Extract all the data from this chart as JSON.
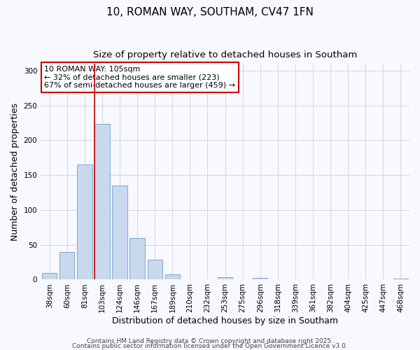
{
  "title": "10, ROMAN WAY, SOUTHAM, CV47 1FN",
  "subtitle": "Size of property relative to detached houses in Southam",
  "xlabel": "Distribution of detached houses by size in Southam",
  "ylabel": "Number of detached properties",
  "bar_color": "#c8d8ed",
  "bar_edge_color": "#7fa8cc",
  "background_color": "#f8f8ff",
  "grid_color": "#d0d0d8",
  "categories": [
    "38sqm",
    "60sqm",
    "81sqm",
    "103sqm",
    "124sqm",
    "146sqm",
    "167sqm",
    "189sqm",
    "210sqm",
    "232sqm",
    "253sqm",
    "275sqm",
    "296sqm",
    "318sqm",
    "339sqm",
    "361sqm",
    "382sqm",
    "404sqm",
    "425sqm",
    "447sqm",
    "468sqm"
  ],
  "values": [
    10,
    40,
    165,
    223,
    135,
    60,
    29,
    7,
    0,
    0,
    3,
    0,
    2,
    0,
    0,
    0,
    0,
    0,
    0,
    0,
    1
  ],
  "ylim": [
    0,
    310
  ],
  "yticks": [
    0,
    50,
    100,
    150,
    200,
    250,
    300
  ],
  "annotation_title": "10 ROMAN WAY: 105sqm",
  "annotation_line1": "← 32% of detached houses are smaller (223)",
  "annotation_line2": "67% of semi-detached houses are larger (459) →",
  "annotation_box_color": "#ffffff",
  "annotation_box_edge_color": "#cc0000",
  "vline_color": "#cc0000",
  "vline_x_index": 3,
  "footer1": "Contains HM Land Registry data © Crown copyright and database right 2025.",
  "footer2": "Contains public sector information licensed under the Open Government Licence v3.0.",
  "title_fontsize": 11,
  "subtitle_fontsize": 9.5,
  "axis_label_fontsize": 9,
  "tick_fontsize": 7.5,
  "annotation_fontsize": 8,
  "footer_fontsize": 6.5
}
